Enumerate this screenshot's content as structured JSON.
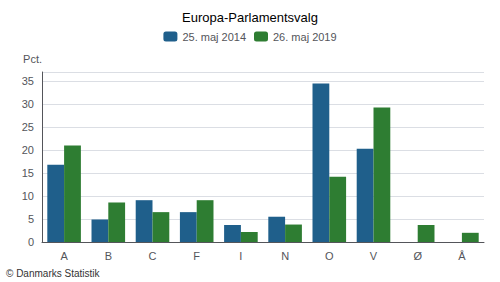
{
  "chart_data": {
    "type": "bar",
    "title": "Europa-Parlamentsvalg",
    "categories": [
      "A",
      "B",
      "C",
      "F",
      "I",
      "N",
      "O",
      "V",
      "Ø",
      "Å"
    ],
    "series": [
      {
        "name": "25. maj 2014",
        "color": "#1F5F8B",
        "values": [
          16.8,
          4.9,
          9.1,
          6.5,
          3.7,
          5.5,
          34.5,
          20.3,
          0.0,
          0.0
        ]
      },
      {
        "name": "26. maj 2019",
        "color": "#2E7D32",
        "values": [
          21.0,
          8.6,
          6.5,
          9.1,
          2.2,
          3.8,
          14.2,
          29.3,
          3.7,
          2.0
        ]
      }
    ],
    "ylabel": "Pct.",
    "annotations": [
      "© Danmarks Statistik"
    ],
    "ylim": [
      0,
      37
    ],
    "yticks": [
      0,
      5,
      10,
      15,
      20,
      25,
      30,
      35
    ],
    "grid": true,
    "legend": "top"
  }
}
